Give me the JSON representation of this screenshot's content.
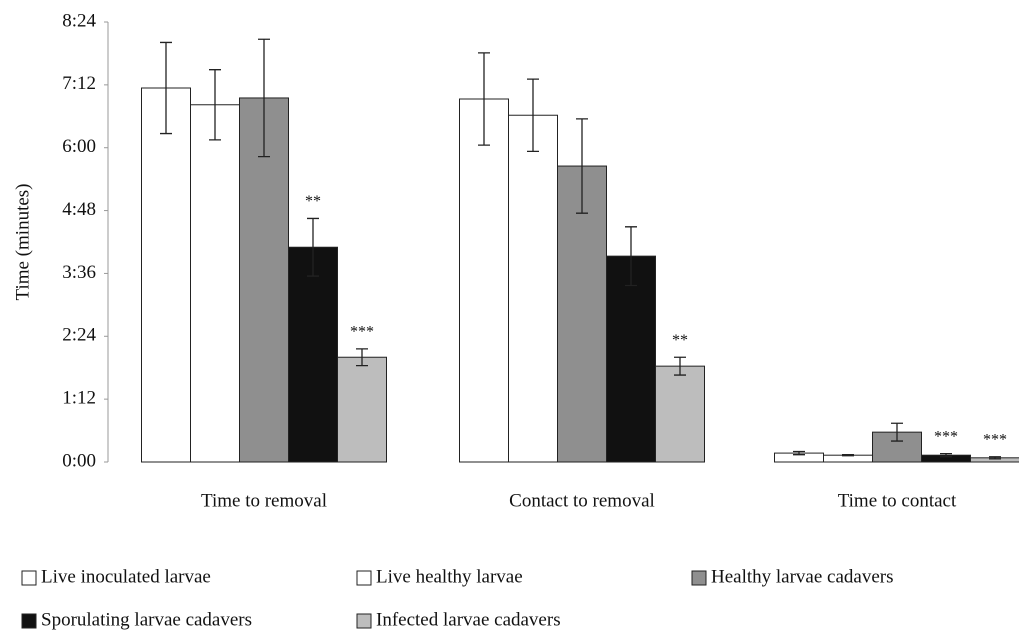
{
  "chart_data": {
    "type": "bar",
    "y_label": "Time (minutes)",
    "categories": [
      "Time to removal",
      "Contact to removal",
      "Time to contact"
    ],
    "series": [
      {
        "name": "Live inoculated larvae",
        "color": "#ffffff",
        "values": [
          7.14,
          6.93,
          0.17
        ],
        "errors": [
          0.87,
          0.88,
          0.03
        ],
        "significance": [
          null,
          null,
          null
        ]
      },
      {
        "name": "Live healthy larvae",
        "color": "#ffffff",
        "values": [
          6.82,
          6.62,
          0.13
        ],
        "errors": [
          0.67,
          0.69,
          0.01
        ],
        "significance": [
          null,
          null,
          null
        ]
      },
      {
        "name": "Healthy larvae cadavers",
        "color": "#8f8f8f",
        "values": [
          6.95,
          5.65,
          0.57
        ],
        "errors": [
          1.12,
          0.9,
          0.17
        ],
        "significance": [
          null,
          null,
          null
        ]
      },
      {
        "name": "Sporulating larvae cadavers",
        "color": "#111111",
        "values": [
          4.1,
          3.93,
          0.13
        ],
        "errors": [
          0.55,
          0.56,
          0.03
        ],
        "significance": [
          "**",
          null,
          "***"
        ]
      },
      {
        "name": "Infected larvae cadavers",
        "color": "#bdbdbd",
        "values": [
          2.0,
          1.83,
          0.08
        ],
        "errors": [
          0.16,
          0.17,
          0.02
        ],
        "significance": [
          "***",
          "**",
          "***"
        ]
      }
    ],
    "ylim": [
      0,
      8.4
    ],
    "yticks": [
      {
        "value": 0,
        "label": "0:00"
      },
      {
        "value": 1.2,
        "label": "1:12"
      },
      {
        "value": 2.4,
        "label": "2:24"
      },
      {
        "value": 3.6,
        "label": "3:36"
      },
      {
        "value": 4.8,
        "label": "4:48"
      },
      {
        "value": 6,
        "label": "6:00"
      },
      {
        "value": 7.2,
        "label": "7:12"
      },
      {
        "value": 8.4,
        "label": "8:24"
      }
    ],
    "grid": false
  }
}
